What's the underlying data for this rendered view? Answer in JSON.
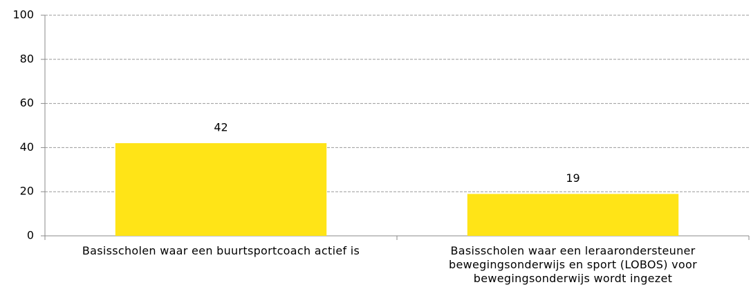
{
  "chart_data": {
    "type": "bar",
    "categories": [
      "Basisscholen waar een buurtsportcoach actief is",
      "Basisscholen waar een leraarondersteuner bewegingsonderwijs en sport (LOBOS) voor bewegingsonderwijs wordt ingezet"
    ],
    "values": [
      42,
      19
    ],
    "color": "#ffe417",
    "ylim": [
      0,
      100
    ],
    "yticks": [
      0,
      20,
      40,
      60,
      80,
      100
    ],
    "grid": true
  }
}
